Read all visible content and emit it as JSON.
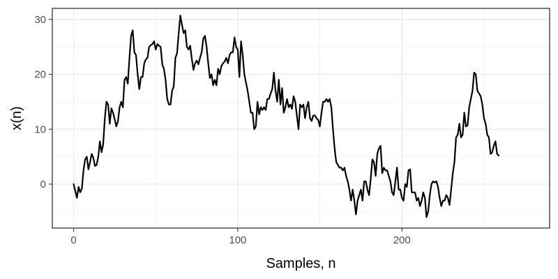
{
  "chart_data": {
    "type": "line",
    "title": "",
    "xlabel": "Samples, n",
    "ylabel": "x(n)",
    "xlim": [
      -13,
      290
    ],
    "ylim": [
      -8,
      32
    ],
    "x_ticks": [
      0,
      100,
      200
    ],
    "y_ticks": [
      0,
      10,
      20,
      30
    ],
    "x_tick_labels": [
      "0",
      "100",
      "200"
    ],
    "y_tick_labels": [
      "0",
      "10",
      "20",
      "30"
    ],
    "grid": true,
    "legend": "none",
    "line_color": "#000000",
    "series": [
      {
        "points": [
          [
            0,
            0
          ],
          [
            2,
            -2.5
          ],
          [
            3,
            -0.5
          ],
          [
            4,
            -1.5
          ],
          [
            5,
            -0.8
          ],
          [
            6,
            2.5
          ],
          [
            7,
            4.5
          ],
          [
            8,
            5.0
          ],
          [
            9,
            2.7
          ],
          [
            10,
            4.0
          ],
          [
            11,
            5.5
          ],
          [
            12,
            4.8
          ],
          [
            13,
            3.3
          ],
          [
            14,
            3.5
          ],
          [
            15,
            5.0
          ],
          [
            16,
            7.8
          ],
          [
            17,
            5.8
          ],
          [
            18,
            7.3
          ],
          [
            19,
            12.0
          ],
          [
            20,
            15.0
          ],
          [
            21,
            14.5
          ],
          [
            22,
            11.0
          ],
          [
            23,
            13.8
          ],
          [
            24,
            13.0
          ],
          [
            25,
            11.8
          ],
          [
            26,
            10.5
          ],
          [
            27,
            11.5
          ],
          [
            28,
            14.0
          ],
          [
            29,
            15.0
          ],
          [
            30,
            14.0
          ],
          [
            31,
            19.0
          ],
          [
            32,
            19.5
          ],
          [
            33,
            18.3
          ],
          [
            34,
            23.0
          ],
          [
            35,
            27.0
          ],
          [
            36,
            28.0
          ],
          [
            37,
            24.0
          ],
          [
            38,
            23.5
          ],
          [
            39,
            20.0
          ],
          [
            40,
            17.3
          ],
          [
            41,
            19.5
          ],
          [
            42,
            19.5
          ],
          [
            43,
            22.0
          ],
          [
            44,
            22.7
          ],
          [
            45,
            23.0
          ],
          [
            46,
            25.0
          ],
          [
            47,
            25.3
          ],
          [
            48,
            25.5
          ],
          [
            49,
            26.0
          ],
          [
            50,
            24.5
          ],
          [
            51,
            25.5
          ],
          [
            52,
            25.2
          ],
          [
            53,
            25.0
          ],
          [
            54,
            21.8
          ],
          [
            55,
            21.0
          ],
          [
            56,
            19.0
          ],
          [
            57,
            15.5
          ],
          [
            58,
            14.5
          ],
          [
            59,
            14.5
          ],
          [
            60,
            17.0
          ],
          [
            61,
            17.8
          ],
          [
            62,
            23.0
          ],
          [
            63,
            23.8
          ],
          [
            64,
            27.5
          ],
          [
            65,
            30.7
          ],
          [
            66,
            29.0
          ],
          [
            67,
            27.5
          ],
          [
            68,
            28.0
          ],
          [
            69,
            25.0
          ],
          [
            70,
            24.5
          ],
          [
            71,
            25.2
          ],
          [
            72,
            22.8
          ],
          [
            73,
            20.8
          ],
          [
            74,
            22.0
          ],
          [
            75,
            22.5
          ],
          [
            76,
            21.8
          ],
          [
            77,
            23.0
          ],
          [
            78,
            24.0
          ],
          [
            79,
            26.5
          ],
          [
            80,
            27.0
          ],
          [
            81,
            25.0
          ],
          [
            82,
            22.0
          ],
          [
            83,
            19.3
          ],
          [
            84,
            20.0
          ],
          [
            85,
            18.0
          ],
          [
            86,
            19.0
          ],
          [
            87,
            18.0
          ],
          [
            88,
            21.0
          ],
          [
            89,
            20.0
          ],
          [
            90,
            21.5
          ],
          [
            91,
            22.0
          ],
          [
            92,
            22.3
          ],
          [
            93,
            23.0
          ],
          [
            94,
            22.0
          ],
          [
            95,
            23.5
          ],
          [
            96,
            24.0
          ],
          [
            97,
            24.0
          ],
          [
            98,
            26.7
          ],
          [
            99,
            25.0
          ],
          [
            100,
            24.5
          ],
          [
            101,
            19.5
          ],
          [
            102,
            26.0
          ],
          [
            103,
            23.5
          ],
          [
            104,
            20.0
          ],
          [
            105,
            18.5
          ],
          [
            106,
            17.0
          ],
          [
            107,
            15.0
          ],
          [
            108,
            13.0
          ],
          [
            109,
            13.0
          ],
          [
            110,
            10.0
          ],
          [
            111,
            10.5
          ],
          [
            112,
            15.0
          ],
          [
            113,
            12.7
          ],
          [
            114,
            14.0
          ],
          [
            115,
            13.5
          ],
          [
            116,
            14.0
          ],
          [
            117,
            13.5
          ],
          [
            118,
            15.5
          ],
          [
            119,
            15.5
          ],
          [
            120,
            16.5
          ],
          [
            121,
            17.3
          ],
          [
            122,
            20.3
          ],
          [
            123,
            17.0
          ],
          [
            124,
            15.0
          ],
          [
            125,
            19.0
          ],
          [
            126,
            14.5
          ],
          [
            127,
            17.5
          ],
          [
            128,
            13.0
          ],
          [
            129,
            14.0
          ],
          [
            130,
            15.5
          ],
          [
            131,
            14.0
          ],
          [
            132,
            14.5
          ],
          [
            133,
            13.7
          ],
          [
            134,
            16.0
          ],
          [
            135,
            15.0
          ],
          [
            136,
            12.5
          ],
          [
            137,
            10.0
          ],
          [
            138,
            14.5
          ],
          [
            139,
            14.0
          ],
          [
            140,
            14.5
          ],
          [
            141,
            12.0
          ],
          [
            142,
            14.0
          ],
          [
            143,
            15.0
          ],
          [
            144,
            12.0
          ],
          [
            145,
            11.5
          ],
          [
            146,
            12.5
          ],
          [
            147,
            12.5
          ],
          [
            148,
            12.0
          ],
          [
            149,
            11.7
          ],
          [
            150,
            10.5
          ],
          [
            151,
            13.0
          ],
          [
            152,
            15.0
          ],
          [
            153,
            15.0
          ],
          [
            154,
            15.5
          ],
          [
            155,
            15.0
          ],
          [
            156,
            15.5
          ],
          [
            157,
            14.0
          ],
          [
            158,
            10.0
          ],
          [
            159,
            6.5
          ],
          [
            160,
            4.0
          ],
          [
            161,
            3.5
          ],
          [
            162,
            3.0
          ],
          [
            163,
            3.0
          ],
          [
            164,
            2.5
          ],
          [
            165,
            3.0
          ],
          [
            166,
            1.5
          ],
          [
            167,
            0.5
          ],
          [
            168,
            -1.0
          ],
          [
            169,
            -3.0
          ],
          [
            170,
            -1.0
          ],
          [
            171,
            -3.0
          ],
          [
            172,
            -5.5
          ],
          [
            173,
            -3.0
          ],
          [
            174,
            -2.0
          ],
          [
            175,
            -1.0
          ],
          [
            176,
            -3.0
          ],
          [
            177,
            0.5
          ],
          [
            178,
            0.5
          ],
          [
            179,
            -1.0
          ],
          [
            180,
            -2.0
          ],
          [
            181,
            1.0
          ],
          [
            182,
            4.5
          ],
          [
            183,
            4.0
          ],
          [
            184,
            1.5
          ],
          [
            185,
            5.5
          ],
          [
            186,
            6.5
          ],
          [
            187,
            7.0
          ],
          [
            188,
            2.0
          ],
          [
            189,
            3.0
          ],
          [
            190,
            2.5
          ],
          [
            191,
            2.5
          ],
          [
            192,
            1.5
          ],
          [
            193,
            0.5
          ],
          [
            194,
            -1.5
          ],
          [
            195,
            -2.0
          ],
          [
            196,
            0.5
          ],
          [
            197,
            3.0
          ],
          [
            198,
            -1.0
          ],
          [
            199,
            -1.0
          ],
          [
            200,
            -2.5
          ],
          [
            201,
            -3.0
          ],
          [
            202,
            0.0
          ],
          [
            203,
            -0.5
          ],
          [
            204,
            2.5
          ],
          [
            205,
            2.7
          ],
          [
            206,
            -1.5
          ],
          [
            207,
            -1.5
          ],
          [
            208,
            -1.5
          ],
          [
            209,
            -3.0
          ],
          [
            210,
            -2.5
          ],
          [
            211,
            -4.0
          ],
          [
            212,
            -3.0
          ],
          [
            213,
            -1.5
          ],
          [
            214,
            -2.5
          ],
          [
            215,
            -6.0
          ],
          [
            216,
            -5.0
          ],
          [
            217,
            -2.0
          ],
          [
            218,
            0.0
          ],
          [
            219,
            0.5
          ],
          [
            220,
            0.3
          ],
          [
            221,
            0.5
          ],
          [
            222,
            -0.5
          ],
          [
            223,
            -2.5
          ],
          [
            224,
            -4.0
          ],
          [
            225,
            -3.0
          ],
          [
            226,
            -3.0
          ],
          [
            227,
            -2.0
          ],
          [
            228,
            -2.5
          ],
          [
            229,
            -3.8
          ],
          [
            230,
            -1.0
          ],
          [
            231,
            2.0
          ],
          [
            232,
            4.0
          ],
          [
            233,
            8.5
          ],
          [
            234,
            9.0
          ],
          [
            235,
            11.0
          ],
          [
            236,
            8.5
          ],
          [
            237,
            9.0
          ],
          [
            238,
            13.0
          ],
          [
            239,
            10.5
          ],
          [
            240,
            10.7
          ],
          [
            241,
            14.0
          ],
          [
            242,
            15.5
          ],
          [
            243,
            17.0
          ],
          [
            244,
            20.3
          ],
          [
            245,
            20.0
          ],
          [
            246,
            17.0
          ],
          [
            247,
            16.5
          ],
          [
            248,
            16.0
          ],
          [
            249,
            14.5
          ],
          [
            250,
            12.0
          ],
          [
            251,
            11.0
          ],
          [
            252,
            9.0
          ],
          [
            253,
            8.5
          ],
          [
            254,
            5.5
          ],
          [
            255,
            5.8
          ],
          [
            256,
            7.0
          ],
          [
            257,
            7.8
          ],
          [
            258,
            5.5
          ],
          [
            259,
            5.2
          ]
        ]
      }
    ]
  }
}
